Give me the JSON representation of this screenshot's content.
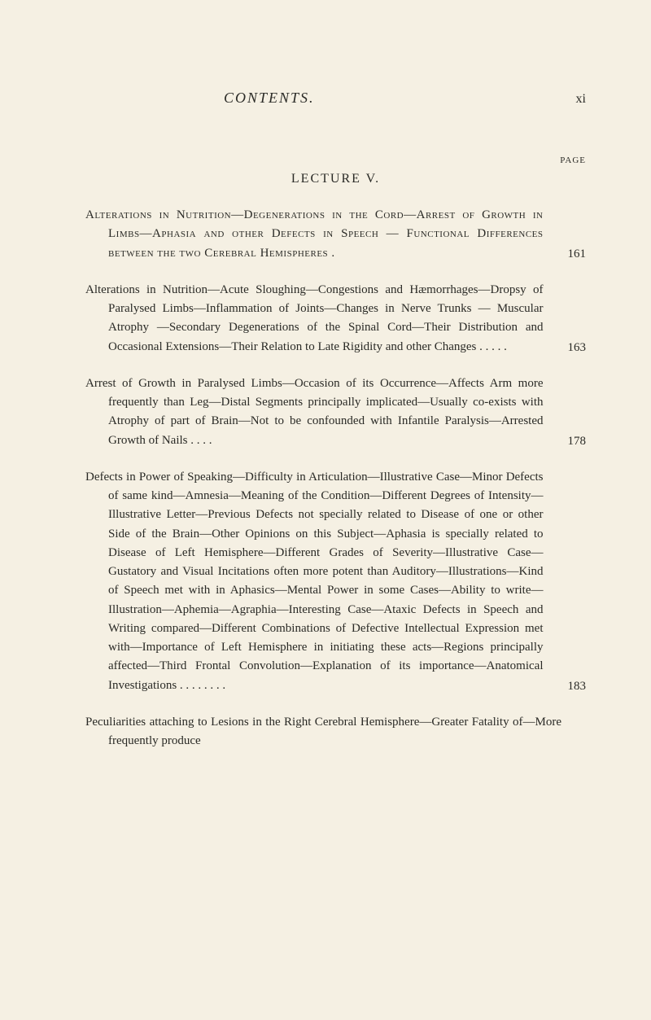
{
  "header": {
    "title": "CONTENTS.",
    "roman_page": "xi"
  },
  "page_label": "PAGE",
  "lecture_title": "LECTURE V.",
  "entries": [
    {
      "text": "Alterations in Nutrition—Degenerations in the Cord—Arrest of Growth in Limbs—Aphasia and other Defects in Speech — Functional Differences between the two Cerebral Hemispheres .",
      "page": "161",
      "caps": true
    },
    {
      "text": "Alterations in Nutrition—Acute Sloughing—Congestions and Hæmorrhages—Dropsy of Paralysed Limbs—Inflammation of Joints—Changes in Nerve Trunks — Muscular Atrophy —Secondary Degenerations of the Spinal Cord—Their Distribution and Occasional Extensions—Their Relation to Late Rigidity and other Changes . . . . .",
      "page": "163",
      "caps": false
    },
    {
      "text": "Arrest of Growth in Paralysed Limbs—Occasion of its Occurrence—Affects Arm more frequently than Leg—Distal Segments principally implicated—Usually co-exists with Atrophy of part of Brain—Not to be confounded with Infantile Paralysis—Arrested Growth of Nails . . . .",
      "page": "178",
      "caps": false
    },
    {
      "text": "Defects in Power of Speaking—Difficulty in Articulation—Illustrative Case—Minor Defects of same kind—Amnesia—Meaning of the Condition—Different Degrees of Intensity—Illustrative Letter—Previous Defects not specially related to Disease of one or other Side of the Brain—Other Opinions on this Subject—Aphasia is specially related to Disease of Left Hemisphere—Different Grades of Severity—Illustrative Case—Gustatory and Visual Incitations often more potent than Auditory—Illustrations—Kind of Speech met with in Aphasics—Mental Power in some Cases—Ability to write—Illustration—Aphemia—Agraphia—Interesting Case—Ataxic Defects in Speech and Writing compared—Different Combinations of Defective Intellectual Expression met with—Importance of Left Hemisphere in initiating these acts—Regions principally affected—Third Frontal Convolution—Explanation of its importance—Anatomical Investigations . . . . . . . .",
      "page": "183",
      "caps": false
    },
    {
      "text": "Peculiarities attaching to Lesions in the Right Cerebral Hemisphere—Greater Fatality of—More frequently produce",
      "page": "",
      "caps": false
    }
  ],
  "colors": {
    "background": "#f5f0e3",
    "text": "#2a2a26"
  }
}
